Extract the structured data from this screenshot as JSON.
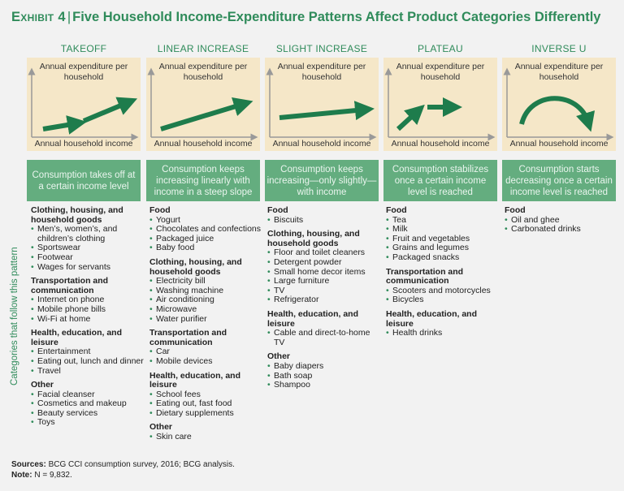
{
  "title": {
    "exhibit": "Exhibit 4",
    "separator": "|",
    "text": "Five Household Income-Expenditure Patterns Affect Product Categories Differently"
  },
  "side_label": "Categories that follow this pattern",
  "graph_ylabel": "Annual expenditure per household",
  "graph_xlabel": "Annual household income",
  "columns": [
    {
      "name": "TAKEOFF",
      "description": "Consumption takes off at a certain income level",
      "groups": [
        {
          "heading": "Clothing, housing, and household goods",
          "items": [
            "Men’s, women’s, and children’s clothing",
            "Sportswear",
            "Footwear",
            "Wages for servants"
          ]
        },
        {
          "heading": "Transportation and communication",
          "items": [
            "Internet on phone",
            "Mobile phone bills",
            "Wi-Fi at home"
          ]
        },
        {
          "heading": "Health, education, and leisure",
          "items": [
            "Entertainment",
            "Eating out, lunch and dinner",
            "Travel"
          ]
        },
        {
          "heading": "Other",
          "items": [
            "Facial cleanser",
            "Cosmetics and makeup",
            "Beauty services",
            "Toys"
          ]
        }
      ]
    },
    {
      "name": "LINEAR INCREASE",
      "description": "Consumption keeps increasing linearly with income in a steep slope",
      "groups": [
        {
          "heading": "Food",
          "items": [
            "Yogurt",
            "Chocolates and confections",
            "Packaged juice",
            "Baby food"
          ]
        },
        {
          "heading": "Clothing, housing, and household goods",
          "items": [
            "Electricity bill",
            "Washing machine",
            "Air conditioning",
            "Microwave",
            "Water purifier"
          ]
        },
        {
          "heading": "Transportation and communication",
          "items": [
            "Car",
            "Mobile devices"
          ]
        },
        {
          "heading": "Health, education, and leisure",
          "items": [
            "School fees",
            "Eating out, fast food",
            "Dietary supplements"
          ]
        },
        {
          "heading": "Other",
          "items": [
            "Skin care"
          ]
        }
      ]
    },
    {
      "name": "SLIGHT INCREASE",
      "description": "Consumption keeps increasing—only slightly—with income",
      "groups": [
        {
          "heading": "Food",
          "items": [
            "Biscuits"
          ]
        },
        {
          "heading": "Clothing, housing, and household goods",
          "items": [
            "Floor and toilet cleaners",
            "Detergent powder",
            "Small home decor items",
            "Large furniture",
            "TV",
            "Refrigerator"
          ]
        },
        {
          "heading": "Health, education, and leisure",
          "items": [
            "Cable and direct-to-home TV"
          ]
        },
        {
          "heading": "Other",
          "items": [
            "Baby diapers",
            "Bath soap",
            "Shampoo"
          ]
        }
      ]
    },
    {
      "name": "PLATEAU",
      "description": "Consumption stabilizes once a certain income level is reached",
      "groups": [
        {
          "heading": "Food",
          "items": [
            "Tea",
            "Milk",
            "Fruit and vegetables",
            "Grains and legumes",
            "Packaged snacks"
          ]
        },
        {
          "heading": "Transportation and communication",
          "items": [
            "Scooters and motorcycles",
            "Bicycles"
          ]
        },
        {
          "heading": "Health, education, and leisure",
          "items": [
            "Health drinks"
          ]
        }
      ]
    },
    {
      "name": "INVERSE U",
      "description": "Consumption starts decreasing once a certain income level is reached",
      "groups": [
        {
          "heading": "Food",
          "items": [
            "Oil and ghee",
            "Carbonated drinks"
          ]
        }
      ]
    }
  ],
  "footer": {
    "sources_label": "Sources:",
    "sources_text": "BCG CCI consumption survey, 2016; BCG analysis.",
    "note_label": "Note:",
    "note_text": "N = 9,832."
  },
  "colors": {
    "accent_green": "#2f8b5a",
    "arrow_green": "#1e7c4c",
    "desc_box": "#64ad7f",
    "graph_bg": "#f5e7c8"
  }
}
